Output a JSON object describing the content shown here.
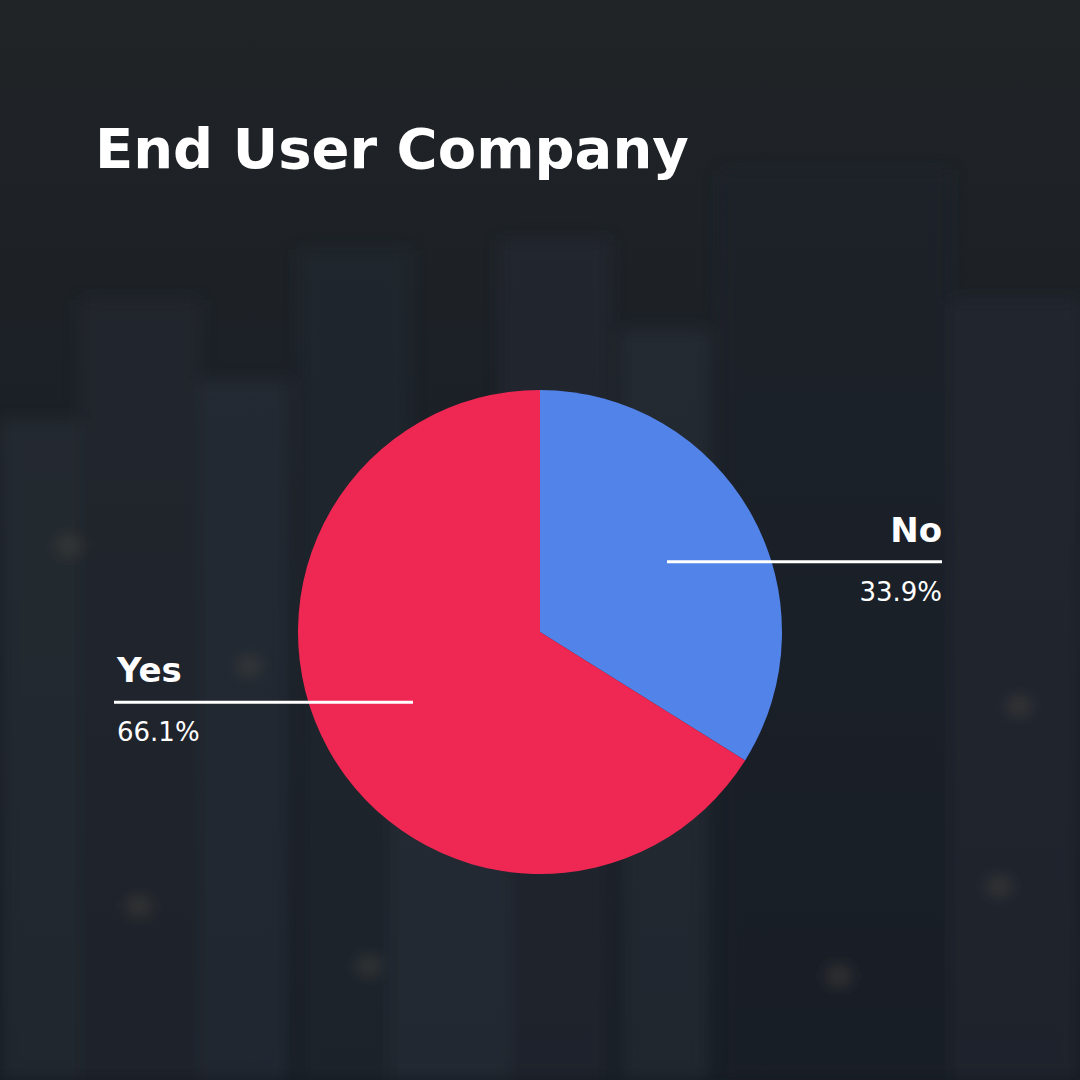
{
  "chart_data": {
    "type": "pie",
    "title": "End User Company",
    "categories": [
      "No",
      "Yes"
    ],
    "values": [
      33.9,
      66.1
    ],
    "value_labels": [
      "33.9%",
      "66.1%"
    ],
    "colors": [
      "#5283e8",
      "#ef2853"
    ],
    "data_labels": true
  }
}
